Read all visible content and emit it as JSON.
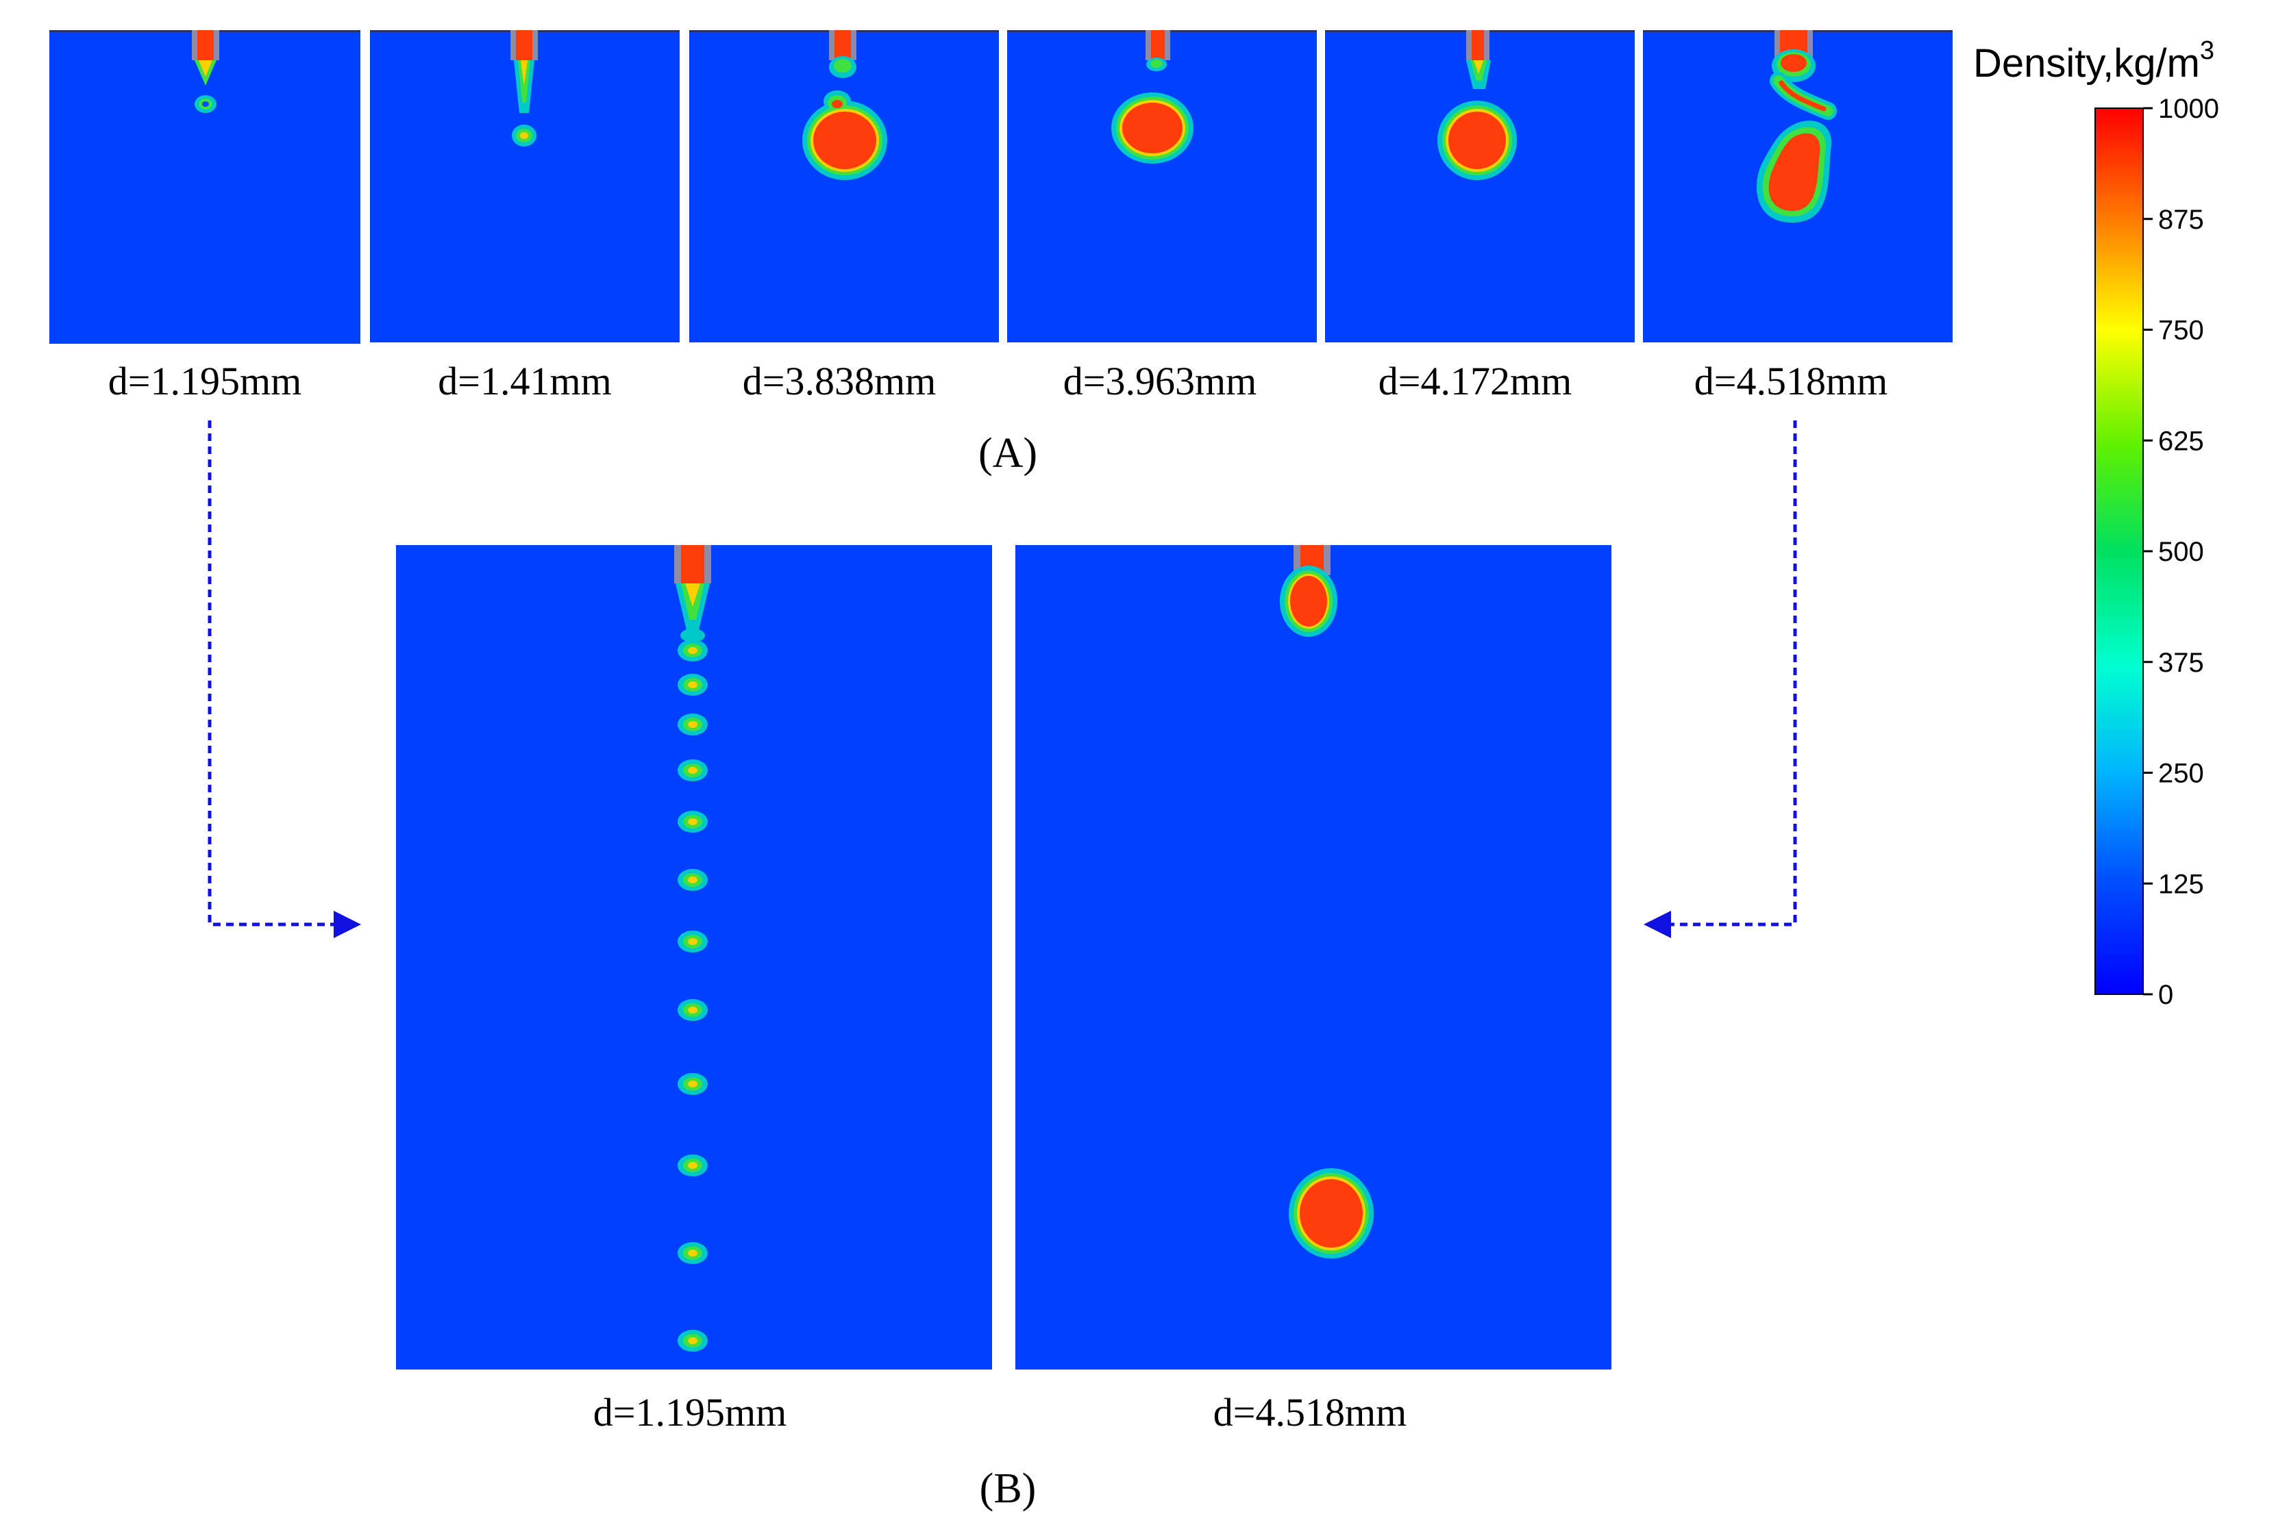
{
  "figure": {
    "panel_a": {
      "tag": "(A)",
      "frames": [
        {
          "label": "d=1.195mm",
          "d_mm": 1.195
        },
        {
          "label": "d=1.41mm",
          "d_mm": 1.41
        },
        {
          "label": "d=3.838mm",
          "d_mm": 3.838
        },
        {
          "label": "d=3.963mm",
          "d_mm": 3.963
        },
        {
          "label": "d=4.172mm",
          "d_mm": 4.172
        },
        {
          "label": "d=4.518mm",
          "d_mm": 4.518
        }
      ]
    },
    "panel_b": {
      "tag": "(B)",
      "frames": [
        {
          "label": "d=1.195mm",
          "d_mm": 1.195
        },
        {
          "label": "d=4.518mm",
          "d_mm": 4.518
        }
      ]
    },
    "colorbar": {
      "title": "Density,kg/m",
      "title_superscript": "3",
      "min": 0,
      "max": 1000,
      "ticks": [
        "1000",
        "875",
        "750",
        "625",
        "500",
        "375",
        "250",
        "125",
        "0"
      ]
    },
    "colors": {
      "background_fluid": "#0040ff",
      "droplet": "#ff3d0a",
      "interface_outer": "#00c8c8",
      "interface_mid": "#40e040",
      "interface_inner": "#e8e800",
      "nozzle": "#8c8ca8",
      "arrow": "#1010e0"
    }
  }
}
